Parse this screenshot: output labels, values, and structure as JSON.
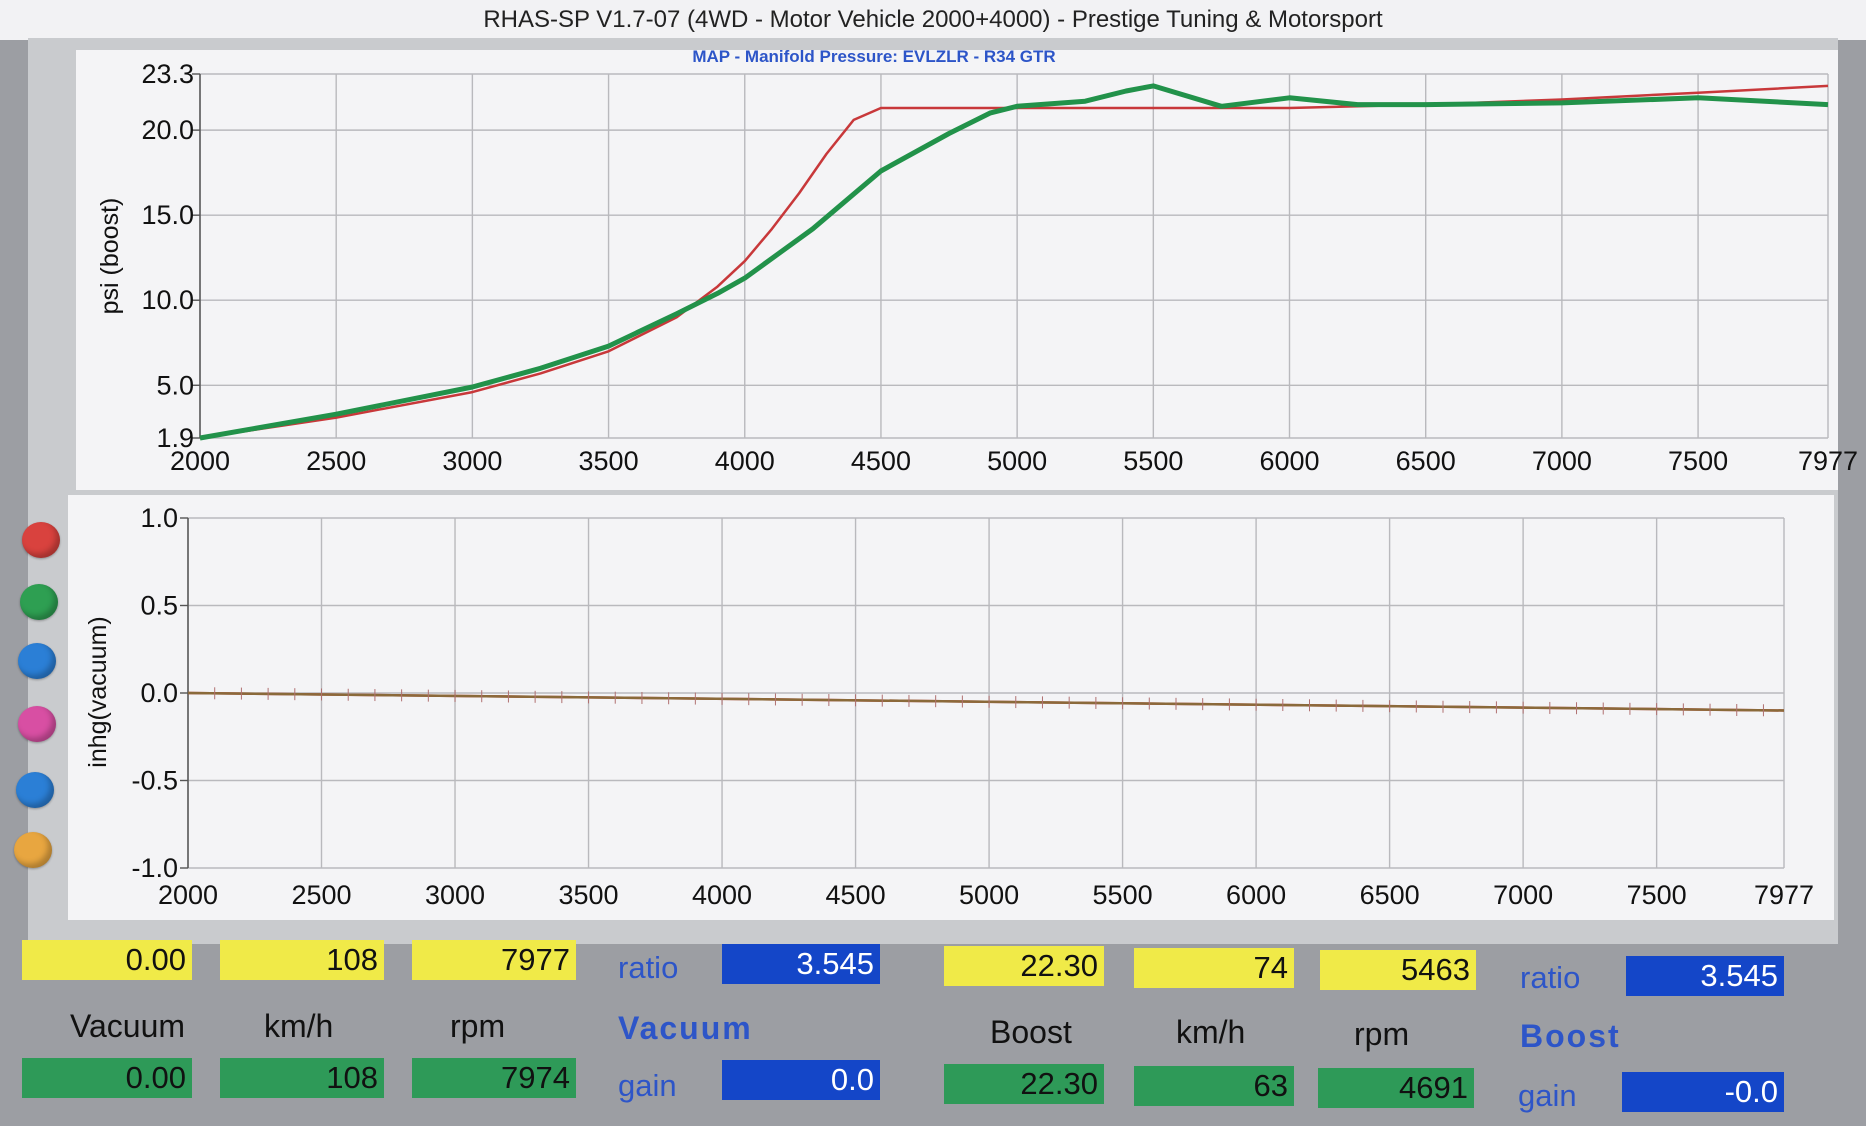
{
  "header": {
    "title": "RHAS-SP V1.7-07  (4WD - Motor Vehicle 2000+4000) - Prestige Tuning & Motorsport"
  },
  "colors": {
    "run1": "#c8383a",
    "run2": "#22924a",
    "accent_blue": "#1446c8",
    "field_yellow": "#f0ea48",
    "field_green": "#2e9a58"
  },
  "legend_colors": [
    "#d9423e",
    "#2e9f52",
    "#2b7fd6",
    "#d84fa3",
    "#2b7fd6",
    "#e8a640"
  ],
  "chart_data": [
    {
      "type": "line",
      "title": "MAP - Manifold Pressure: EVLZLR - R34 GTR",
      "ylabel": "psi (boost)",
      "xlabel": "",
      "xlim": [
        2000,
        7977
      ],
      "ylim": [
        1.9,
        23.3
      ],
      "x_ticks": [
        "2000",
        "2500",
        "3000",
        "3500",
        "4000",
        "4500",
        "5000",
        "5500",
        "6000",
        "6500",
        "7000",
        "7500",
        "7977"
      ],
      "y_ticks": [
        "23.3",
        "20.0",
        "15.0",
        "10.0",
        "5.0",
        "1.9"
      ],
      "grid": true,
      "series": [
        {
          "color": "#c8383a",
          "x": [
            2000,
            2500,
            3000,
            3250,
            3500,
            3750,
            3900,
            4000,
            4100,
            4200,
            4300,
            4400,
            4500,
            5000,
            5500,
            6000,
            6500,
            7000,
            7500,
            7977
          ],
          "y": [
            1.9,
            3.1,
            4.6,
            5.7,
            7.0,
            9.0,
            10.8,
            12.3,
            14.2,
            16.3,
            18.6,
            20.6,
            21.3,
            21.3,
            21.3,
            21.3,
            21.5,
            21.8,
            22.2,
            22.6
          ]
        },
        {
          "color": "#22924a",
          "x": [
            2000,
            2500,
            3000,
            3250,
            3500,
            3750,
            3900,
            4000,
            4250,
            4500,
            4750,
            4900,
            5000,
            5250,
            5400,
            5500,
            5750,
            6000,
            6250,
            6500,
            7000,
            7500,
            7977
          ],
          "y": [
            1.9,
            3.3,
            4.9,
            6.0,
            7.3,
            9.2,
            10.4,
            11.3,
            14.2,
            17.6,
            19.8,
            21.0,
            21.4,
            21.7,
            22.3,
            22.6,
            21.4,
            21.9,
            21.5,
            21.5,
            21.6,
            21.9,
            21.5
          ]
        }
      ]
    },
    {
      "type": "line",
      "title": "",
      "ylabel": "inhg(vacuum)",
      "xlabel": "",
      "xlim": [
        2000,
        7977
      ],
      "ylim": [
        -1.0,
        1.0
      ],
      "x_ticks": [
        "2000",
        "2500",
        "3000",
        "3500",
        "4000",
        "4500",
        "5000",
        "5500",
        "6000",
        "6500",
        "7000",
        "7500",
        "7977"
      ],
      "y_ticks": [
        "1.0",
        "0.5",
        "0.0",
        "-0.5",
        "-1.0"
      ],
      "grid": true,
      "series": [
        {
          "color": "#c8383a",
          "x": [
            2000,
            7977
          ],
          "y": [
            0.0,
            -0.1
          ]
        },
        {
          "color": "#8a6a3a",
          "x": [
            2000,
            7977
          ],
          "y": [
            0.0,
            -0.1
          ]
        }
      ]
    }
  ],
  "readouts": {
    "vacuum_value": "0.00",
    "vacuum_kmh": "108",
    "vacuum_rpm": "7977",
    "vacuum_ratio_label": "ratio",
    "vacuum_ratio": "3.545",
    "label_vacuum": "Vacuum",
    "label_kmh": "km/h",
    "label_rpm": "rpm",
    "label_vacuum_section": "Vacuum",
    "vacuum_value2": "0.00",
    "vacuum_kmh2": "108",
    "vacuum_rpm2": "7974",
    "vacuum_gain_label": "gain",
    "vacuum_gain": "0.0",
    "boost_value": "22.30",
    "boost_kmh": "74",
    "boost_rpm": "5463",
    "boost_ratio_label": "ratio",
    "boost_ratio": "3.545",
    "label_boost": "Boost",
    "label_boost_kmh": "km/h",
    "label_boost_rpm": "rpm",
    "label_boost_section": "Boost",
    "boost_value2": "22.30",
    "boost_kmh2": "63",
    "boost_rpm2": "4691",
    "boost_gain_label": "gain",
    "boost_gain": "-0.0"
  }
}
